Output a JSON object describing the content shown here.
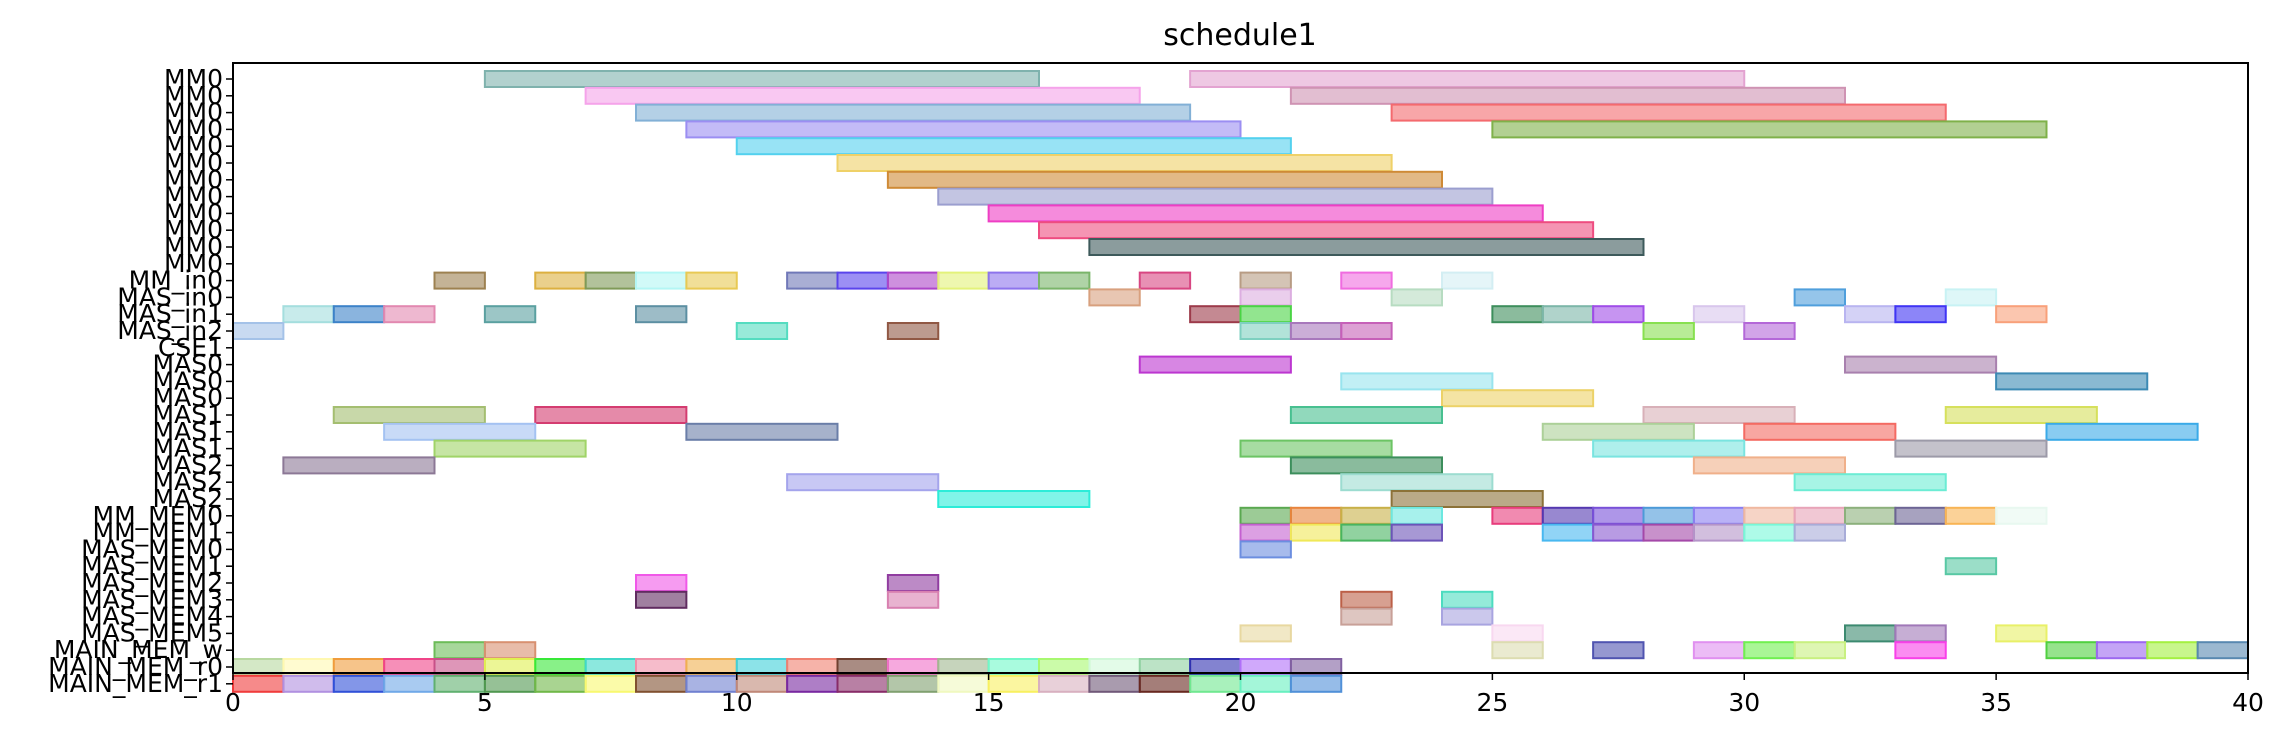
{
  "chart_data": {
    "type": "gantt",
    "title": "schedule1",
    "xlabel": "",
    "ylabel": "",
    "xlim": [
      0,
      40
    ],
    "x_ticks": [
      0,
      5,
      10,
      15,
      20,
      25,
      30,
      35,
      40
    ],
    "grid": false,
    "rows": [
      "MM0",
      "MM0",
      "MM0",
      "MM0",
      "MM0",
      "MM0",
      "MM0",
      "MM0",
      "MM0",
      "MM0",
      "MM0",
      "MM0",
      "MM_in0",
      "MAS_in0",
      "MAS_in1",
      "MAS_in2",
      "CSE1",
      "MAS0",
      "MAS0",
      "MAS0",
      "MAS1",
      "MAS1",
      "MAS1",
      "MAS2",
      "MAS2",
      "MAS2",
      "MM_MEM0",
      "MM_MEM1",
      "MAS_MEM0",
      "MAS_MEM1",
      "MAS_MEM2",
      "MAS_MEM3",
      "MAS_MEM4",
      "MAS_MEM5",
      "MAIN_MEM_w",
      "MAIN_MEM_r0",
      "MAIN_MEM_r1"
    ],
    "bars": [
      {
        "row": 0,
        "start": 5,
        "end": 16,
        "color": "#7fb2ad"
      },
      {
        "row": 0,
        "start": 19,
        "end": 30,
        "color": "#e3a3d1"
      },
      {
        "row": 1,
        "start": 7,
        "end": 18,
        "color": "#f5a3ea"
      },
      {
        "row": 1,
        "start": 21,
        "end": 32,
        "color": "#cf93b3"
      },
      {
        "row": 2,
        "start": 8,
        "end": 19,
        "color": "#82b0d6"
      },
      {
        "row": 2,
        "start": 23,
        "end": 34,
        "color": "#f46a6e"
      },
      {
        "row": 3,
        "start": 9,
        "end": 20,
        "color": "#9b8ef2"
      },
      {
        "row": 3,
        "start": 25,
        "end": 36,
        "color": "#7fb14a"
      },
      {
        "row": 4,
        "start": 10,
        "end": 21,
        "color": "#53d1ee"
      },
      {
        "row": 5,
        "start": 12,
        "end": 23,
        "color": "#efd168"
      },
      {
        "row": 6,
        "start": 13,
        "end": 24,
        "color": "#cf8a36"
      },
      {
        "row": 7,
        "start": 14,
        "end": 25,
        "color": "#9b9ecf"
      },
      {
        "row": 8,
        "start": 15,
        "end": 26,
        "color": "#ee3ec4"
      },
      {
        "row": 9,
        "start": 16,
        "end": 27,
        "color": "#ee4c80"
      },
      {
        "row": 10,
        "start": 17,
        "end": 28,
        "color": "#3d5a5b"
      },
      {
        "row": 12,
        "start": 4,
        "end": 5,
        "color": "#9d8150"
      },
      {
        "row": 12,
        "start": 6,
        "end": 7,
        "color": "#dcb040"
      },
      {
        "row": 12,
        "start": 7,
        "end": 8,
        "color": "#7f9a58"
      },
      {
        "row": 12,
        "start": 8,
        "end": 9,
        "color": "#b3f6f4"
      },
      {
        "row": 12,
        "start": 9,
        "end": 10,
        "color": "#e8c954"
      },
      {
        "row": 12,
        "start": 11,
        "end": 12,
        "color": "#7078b8"
      },
      {
        "row": 12,
        "start": 12,
        "end": 13,
        "color": "#5a44ec"
      },
      {
        "row": 12,
        "start": 13,
        "end": 14,
        "color": "#ad46c8"
      },
      {
        "row": 12,
        "start": 14,
        "end": 15,
        "color": "#e3f27a"
      },
      {
        "row": 12,
        "start": 15,
        "end": 16,
        "color": "#8d74ec"
      },
      {
        "row": 12,
        "start": 16,
        "end": 17,
        "color": "#7ab56a"
      },
      {
        "row": 12,
        "start": 18,
        "end": 19,
        "color": "#d84682"
      },
      {
        "row": 12,
        "start": 20,
        "end": 21,
        "color": "#b89c84"
      },
      {
        "row": 12,
        "start": 22,
        "end": 23,
        "color": "#f06ce0"
      },
      {
        "row": 12,
        "start": 24,
        "end": 25,
        "color": "#d3eef3"
      },
      {
        "row": 13,
        "start": 17,
        "end": 18,
        "color": "#d8a07e"
      },
      {
        "row": 13,
        "start": 20,
        "end": 21,
        "color": "#dcaee0"
      },
      {
        "row": 13,
        "start": 23,
        "end": 24,
        "color": "#b7dcc1"
      },
      {
        "row": 13,
        "start": 31,
        "end": 32,
        "color": "#4f9fdc"
      },
      {
        "row": 13,
        "start": 34,
        "end": 35,
        "color": "#c8f2f4"
      },
      {
        "row": 14,
        "start": 1,
        "end": 2,
        "color": "#a4dede"
      },
      {
        "row": 14,
        "start": 2,
        "end": 3,
        "color": "#3c82c8"
      },
      {
        "row": 14,
        "start": 3,
        "end": 4,
        "color": "#e288b0"
      },
      {
        "row": 14,
        "start": 5,
        "end": 6,
        "color": "#5aa0a0"
      },
      {
        "row": 14,
        "start": 8,
        "end": 9,
        "color": "#5c8fa2"
      },
      {
        "row": 14,
        "start": 19,
        "end": 20,
        "color": "#9c3a4a"
      },
      {
        "row": 14,
        "start": 20,
        "end": 21,
        "color": "#4ad444"
      },
      {
        "row": 14,
        "start": 25,
        "end": 26,
        "color": "#3d8e5c"
      },
      {
        "row": 14,
        "start": 26,
        "end": 27,
        "color": "#7cb6a8"
      },
      {
        "row": 14,
        "start": 27,
        "end": 28,
        "color": "#a04ce8"
      },
      {
        "row": 14,
        "start": 29,
        "end": 30,
        "color": "#d8c6ec"
      },
      {
        "row": 14,
        "start": 32,
        "end": 33,
        "color": "#b8b4f0"
      },
      {
        "row": 14,
        "start": 33,
        "end": 34,
        "color": "#3f34f4"
      },
      {
        "row": 14,
        "start": 35,
        "end": 36,
        "color": "#f8a07a"
      },
      {
        "row": 15,
        "start": 0,
        "end": 1,
        "color": "#a4c2e8"
      },
      {
        "row": 15,
        "start": 10,
        "end": 11,
        "color": "#54dcc0"
      },
      {
        "row": 15,
        "start": 13,
        "end": 14,
        "color": "#905844"
      },
      {
        "row": 15,
        "start": 20,
        "end": 21,
        "color": "#7ed0c0"
      },
      {
        "row": 15,
        "start": 21,
        "end": 22,
        "color": "#a878bc"
      },
      {
        "row": 15,
        "start": 22,
        "end": 23,
        "color": "#c660b8"
      },
      {
        "row": 15,
        "start": 28,
        "end": 29,
        "color": "#88e050"
      },
      {
        "row": 15,
        "start": 30,
        "end": 31,
        "color": "#b468d8"
      },
      {
        "row": 17,
        "start": 18,
        "end": 21,
        "color": "#bc36d0"
      },
      {
        "row": 17,
        "start": 32,
        "end": 35,
        "color": "#a880ae"
      },
      {
        "row": 18,
        "start": 22,
        "end": 25,
        "color": "#98e4ee"
      },
      {
        "row": 18,
        "start": 35,
        "end": 38,
        "color": "#3c8ab4"
      },
      {
        "row": 19,
        "start": 24,
        "end": 27,
        "color": "#ecd268"
      },
      {
        "row": 20,
        "start": 2,
        "end": 5,
        "color": "#a4be70"
      },
      {
        "row": 20,
        "start": 6,
        "end": 9,
        "color": "#d43c70"
      },
      {
        "row": 20,
        "start": 21,
        "end": 24,
        "color": "#48c090"
      },
      {
        "row": 20,
        "start": 28,
        "end": 31,
        "color": "#d8b0b8"
      },
      {
        "row": 20,
        "start": 34,
        "end": 37,
        "color": "#d6e05c"
      },
      {
        "row": 21,
        "start": 3,
        "end": 6,
        "color": "#a4c2f2"
      },
      {
        "row": 21,
        "start": 9,
        "end": 12,
        "color": "#6a7ea8"
      },
      {
        "row": 21,
        "start": 26,
        "end": 29,
        "color": "#acd098"
      },
      {
        "row": 21,
        "start": 30,
        "end": 33,
        "color": "#f46a62"
      },
      {
        "row": 21,
        "start": 36,
        "end": 39,
        "color": "#3aaae8"
      },
      {
        "row": 22,
        "start": 4,
        "end": 7,
        "color": "#a0d468"
      },
      {
        "row": 22,
        "start": 20,
        "end": 23,
        "color": "#6cc464"
      },
      {
        "row": 22,
        "start": 27,
        "end": 30,
        "color": "#7ae4e0"
      },
      {
        "row": 22,
        "start": 33,
        "end": 36,
        "color": "#9c9aa8"
      },
      {
        "row": 23,
        "start": 1,
        "end": 4,
        "color": "#8c7896"
      },
      {
        "row": 23,
        "start": 21,
        "end": 24,
        "color": "#3c8e5c"
      },
      {
        "row": 23,
        "start": 29,
        "end": 32,
        "color": "#f0b08a"
      },
      {
        "row": 24,
        "start": 11,
        "end": 14,
        "color": "#a4a4ec"
      },
      {
        "row": 24,
        "start": 22,
        "end": 25,
        "color": "#9cdcd0"
      },
      {
        "row": 24,
        "start": 31,
        "end": 34,
        "color": "#6cecd4"
      },
      {
        "row": 25,
        "start": 14,
        "end": 17,
        "color": "#2cecd8"
      },
      {
        "row": 25,
        "start": 23,
        "end": 26,
        "color": "#8c7238"
      },
      {
        "row": 26,
        "start": 20,
        "end": 21,
        "color": "#5aa850"
      },
      {
        "row": 26,
        "start": 21,
        "end": 22,
        "color": "#e8843c"
      },
      {
        "row": 26,
        "start": 22,
        "end": 23,
        "color": "#c8b048"
      },
      {
        "row": 26,
        "start": 23,
        "end": 24,
        "color": "#6ce8e0"
      },
      {
        "row": 26,
        "start": 25,
        "end": 26,
        "color": "#e83c7c"
      },
      {
        "row": 26,
        "start": 26,
        "end": 27,
        "color": "#5438b0"
      },
      {
        "row": 26,
        "start": 27,
        "end": 28,
        "color": "#7850d8"
      },
      {
        "row": 26,
        "start": 28,
        "end": 29,
        "color": "#4c9ad8"
      },
      {
        "row": 26,
        "start": 29,
        "end": 30,
        "color": "#8a7ef0"
      },
      {
        "row": 26,
        "start": 30,
        "end": 31,
        "color": "#f0b8a0"
      },
      {
        "row": 26,
        "start": 31,
        "end": 32,
        "color": "#e8a4b8"
      },
      {
        "row": 26,
        "start": 32,
        "end": 33,
        "color": "#8cb07c"
      },
      {
        "row": 26,
        "start": 33,
        "end": 34,
        "color": "#6c6494"
      },
      {
        "row": 26,
        "start": 34,
        "end": 35,
        "color": "#f8b454"
      },
      {
        "row": 26,
        "start": 35,
        "end": 36,
        "color": "#e8f8f0"
      },
      {
        "row": 27,
        "start": 20,
        "end": 21,
        "color": "#c460d0"
      },
      {
        "row": 27,
        "start": 21,
        "end": 22,
        "color": "#f0e858"
      },
      {
        "row": 27,
        "start": 22,
        "end": 23,
        "color": "#48b460"
      },
      {
        "row": 27,
        "start": 23,
        "end": 24,
        "color": "#6c54b8"
      },
      {
        "row": 27,
        "start": 26,
        "end": 27,
        "color": "#48b8f0"
      },
      {
        "row": 27,
        "start": 27,
        "end": 28,
        "color": "#8858d0"
      },
      {
        "row": 27,
        "start": 28,
        "end": 29,
        "color": "#a448a8"
      },
      {
        "row": 27,
        "start": 29,
        "end": 30,
        "color": "#b494c8"
      },
      {
        "row": 27,
        "start": 30,
        "end": 31,
        "color": "#78f8d8"
      },
      {
        "row": 27,
        "start": 31,
        "end": 32,
        "color": "#a8acd8"
      },
      {
        "row": 28,
        "start": 20,
        "end": 21,
        "color": "#6c8ee0"
      },
      {
        "row": 29,
        "start": 34,
        "end": 35,
        "color": "#58c8a4"
      },
      {
        "row": 30,
        "start": 8,
        "end": 9,
        "color": "#f058e8"
      },
      {
        "row": 30,
        "start": 13,
        "end": 14,
        "color": "#903ca0"
      },
      {
        "row": 31,
        "start": 8,
        "end": 9,
        "color": "#602c60"
      },
      {
        "row": 31,
        "start": 13,
        "end": 14,
        "color": "#d880b0"
      },
      {
        "row": 31,
        "start": 22,
        "end": 23,
        "color": "#bc6048"
      },
      {
        "row": 31,
        "start": 24,
        "end": 25,
        "color": "#4cdcc0"
      },
      {
        "row": 32,
        "start": 22,
        "end": 23,
        "color": "#c8a098"
      },
      {
        "row": 32,
        "start": 24,
        "end": 25,
        "color": "#a8a4e0"
      },
      {
        "row": 33,
        "start": 20,
        "end": 21,
        "color": "#e8d8a0"
      },
      {
        "row": 33,
        "start": 25,
        "end": 26,
        "color": "#f8d8f0"
      },
      {
        "row": 33,
        "start": 32,
        "end": 33,
        "color": "#3c8a70"
      },
      {
        "row": 33,
        "start": 33,
        "end": 34,
        "color": "#a078b8"
      },
      {
        "row": 33,
        "start": 35,
        "end": 36,
        "color": "#e8f068"
      },
      {
        "row": 34,
        "start": 4,
        "end": 5,
        "color": "#6cbc58"
      },
      {
        "row": 34,
        "start": 5,
        "end": 6,
        "color": "#d89070"
      },
      {
        "row": 34,
        "start": 25,
        "end": 26,
        "color": "#dcdcb0"
      },
      {
        "row": 34,
        "start": 27,
        "end": 28,
        "color": "#5054b0"
      },
      {
        "row": 34,
        "start": 29,
        "end": 30,
        "color": "#e090f0"
      },
      {
        "row": 34,
        "start": 30,
        "end": 31,
        "color": "#70f050"
      },
      {
        "row": 34,
        "start": 31,
        "end": 32,
        "color": "#c8f080"
      },
      {
        "row": 34,
        "start": 33,
        "end": 34,
        "color": "#f840e8"
      },
      {
        "row": 34,
        "start": 36,
        "end": 37,
        "color": "#50d040"
      },
      {
        "row": 34,
        "start": 37,
        "end": 38,
        "color": "#9c68f0"
      },
      {
        "row": 34,
        "start": 38,
        "end": 39,
        "color": "#a4f040"
      },
      {
        "row": 34,
        "start": 39,
        "end": 40,
        "color": "#5888b0"
      },
      {
        "row": 35,
        "start": 0,
        "end": 1,
        "color": "#b8d8a0"
      },
      {
        "row": 35,
        "start": 1,
        "end": 2,
        "color": "#fff8b0"
      },
      {
        "row": 35,
        "start": 2,
        "end": 3,
        "color": "#f09c3c"
      },
      {
        "row": 35,
        "start": 3,
        "end": 4,
        "color": "#f04488"
      },
      {
        "row": 35,
        "start": 4,
        "end": 5,
        "color": "#c85088"
      },
      {
        "row": 35,
        "start": 5,
        "end": 6,
        "color": "#e0f050"
      },
      {
        "row": 35,
        "start": 6,
        "end": 7,
        "color": "#38e838"
      },
      {
        "row": 35,
        "start": 7,
        "end": 8,
        "color": "#40d8c8"
      },
      {
        "row": 35,
        "start": 8,
        "end": 9,
        "color": "#f090a8"
      },
      {
        "row": 35,
        "start": 9,
        "end": 10,
        "color": "#f0b050"
      },
      {
        "row": 35,
        "start": 10,
        "end": 11,
        "color": "#40d0d8"
      },
      {
        "row": 35,
        "start": 11,
        "end": 12,
        "color": "#f08070"
      },
      {
        "row": 35,
        "start": 12,
        "end": 13,
        "color": "#704030"
      },
      {
        "row": 35,
        "start": 13,
        "end": 14,
        "color": "#f070c8"
      },
      {
        "row": 35,
        "start": 14,
        "end": 15,
        "color": "#a0b890"
      },
      {
        "row": 35,
        "start": 15,
        "end": 16,
        "color": "#70f8c8"
      },
      {
        "row": 35,
        "start": 16,
        "end": 17,
        "color": "#a8f870"
      },
      {
        "row": 35,
        "start": 17,
        "end": 18,
        "color": "#d0f8d8"
      },
      {
        "row": 35,
        "start": 18,
        "end": 19,
        "color": "#90d0a0"
      },
      {
        "row": 35,
        "start": 19,
        "end": 20,
        "color": "#3030b0"
      },
      {
        "row": 35,
        "start": 20,
        "end": 21,
        "color": "#b070f8"
      },
      {
        "row": 35,
        "start": 21,
        "end": 22,
        "color": "#8060a0"
      },
      {
        "row": 36,
        "start": 0,
        "end": 1,
        "color": "#f03c3c"
      },
      {
        "row": 36,
        "start": 1,
        "end": 2,
        "color": "#b090e0"
      },
      {
        "row": 36,
        "start": 2,
        "end": 3,
        "color": "#3050d8"
      },
      {
        "row": 36,
        "start": 3,
        "end": 4,
        "color": "#70a8e8"
      },
      {
        "row": 36,
        "start": 4,
        "end": 5,
        "color": "#60b070"
      },
      {
        "row": 36,
        "start": 5,
        "end": 6,
        "color": "#509850"
      },
      {
        "row": 36,
        "start": 6,
        "end": 7,
        "color": "#70b848"
      },
      {
        "row": 36,
        "start": 7,
        "end": 8,
        "color": "#f8f870"
      },
      {
        "row": 36,
        "start": 8,
        "end": 9,
        "color": "#805030"
      },
      {
        "row": 36,
        "start": 9,
        "end": 10,
        "color": "#7080d0"
      },
      {
        "row": 36,
        "start": 10,
        "end": 11,
        "color": "#c08878"
      },
      {
        "row": 36,
        "start": 11,
        "end": 12,
        "color": "#7828a0"
      },
      {
        "row": 36,
        "start": 12,
        "end": 13,
        "color": "#882c68"
      },
      {
        "row": 36,
        "start": 13,
        "end": 14,
        "color": "#80a070"
      },
      {
        "row": 36,
        "start": 14,
        "end": 15,
        "color": "#f0f8c0"
      },
      {
        "row": 36,
        "start": 15,
        "end": 16,
        "color": "#f8f060"
      },
      {
        "row": 36,
        "start": 16,
        "end": 17,
        "color": "#d8b0c0"
      },
      {
        "row": 36,
        "start": 17,
        "end": 18,
        "color": "#705878"
      },
      {
        "row": 36,
        "start": 18,
        "end": 19,
        "color": "#682820"
      },
      {
        "row": 36,
        "start": 19,
        "end": 20,
        "color": "#70e890"
      },
      {
        "row": 36,
        "start": 20,
        "end": 21,
        "color": "#68f0c0"
      },
      {
        "row": 36,
        "start": 21,
        "end": 22,
        "color": "#5090d8"
      }
    ]
  }
}
